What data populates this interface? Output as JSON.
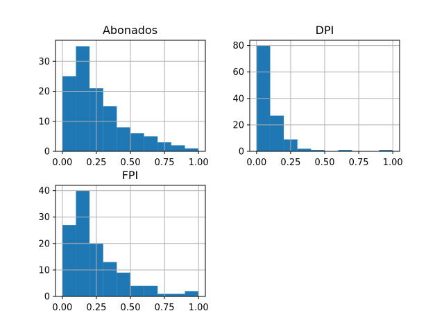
{
  "figure": {
    "background": "#ffffff",
    "bar_color": "#1f77b4",
    "grid_color": "#b0b0b0"
  },
  "chart_data": [
    {
      "type": "bar",
      "title": "Abonados",
      "xlabel": "",
      "ylabel": "",
      "bin_edges": [
        0.0,
        0.1,
        0.2,
        0.3,
        0.4,
        0.5,
        0.6,
        0.7,
        0.8,
        0.9,
        1.0
      ],
      "values": [
        25,
        35,
        21,
        15,
        8,
        6,
        5,
        3,
        2,
        1
      ],
      "xlim": [
        -0.05,
        1.05
      ],
      "ylim": [
        0,
        37
      ],
      "xticks": [
        0.0,
        0.25,
        0.5,
        0.75,
        1.0
      ],
      "xtick_labels": [
        "0.00",
        "0.25",
        "0.50",
        "0.75",
        "1.00"
      ],
      "yticks": [
        0,
        10,
        20,
        30
      ],
      "ytick_labels": [
        "0",
        "10",
        "20",
        "30"
      ],
      "grid": true
    },
    {
      "type": "bar",
      "title": "DPI",
      "xlabel": "",
      "ylabel": "",
      "bin_edges": [
        0.0,
        0.1,
        0.2,
        0.3,
        0.4,
        0.5,
        0.6,
        0.7,
        0.8,
        0.9,
        1.0
      ],
      "values": [
        80,
        27,
        9,
        2,
        1,
        0,
        1,
        0,
        0,
        1
      ],
      "xlim": [
        -0.05,
        1.05
      ],
      "ylim": [
        0,
        84
      ],
      "xticks": [
        0.0,
        0.25,
        0.5,
        0.75,
        1.0
      ],
      "xtick_labels": [
        "0.00",
        "0.25",
        "0.50",
        "0.75",
        "1.00"
      ],
      "yticks": [
        0,
        20,
        40,
        60,
        80
      ],
      "ytick_labels": [
        "0",
        "20",
        "40",
        "60",
        "80"
      ],
      "grid": true
    },
    {
      "type": "bar",
      "title": "FPI",
      "xlabel": "",
      "ylabel": "",
      "bin_edges": [
        0.0,
        0.1,
        0.2,
        0.3,
        0.4,
        0.5,
        0.6,
        0.7,
        0.8,
        0.9,
        1.0
      ],
      "values": [
        27,
        40,
        20,
        13,
        9,
        4,
        4,
        1,
        1,
        2
      ],
      "xlim": [
        -0.05,
        1.05
      ],
      "ylim": [
        0,
        42
      ],
      "xticks": [
        0.0,
        0.25,
        0.5,
        0.75,
        1.0
      ],
      "xtick_labels": [
        "0.00",
        "0.25",
        "0.50",
        "0.75",
        "1.00"
      ],
      "yticks": [
        0,
        10,
        20,
        30,
        40
      ],
      "ytick_labels": [
        "0",
        "10",
        "20",
        "30",
        "40"
      ],
      "grid": true
    }
  ]
}
